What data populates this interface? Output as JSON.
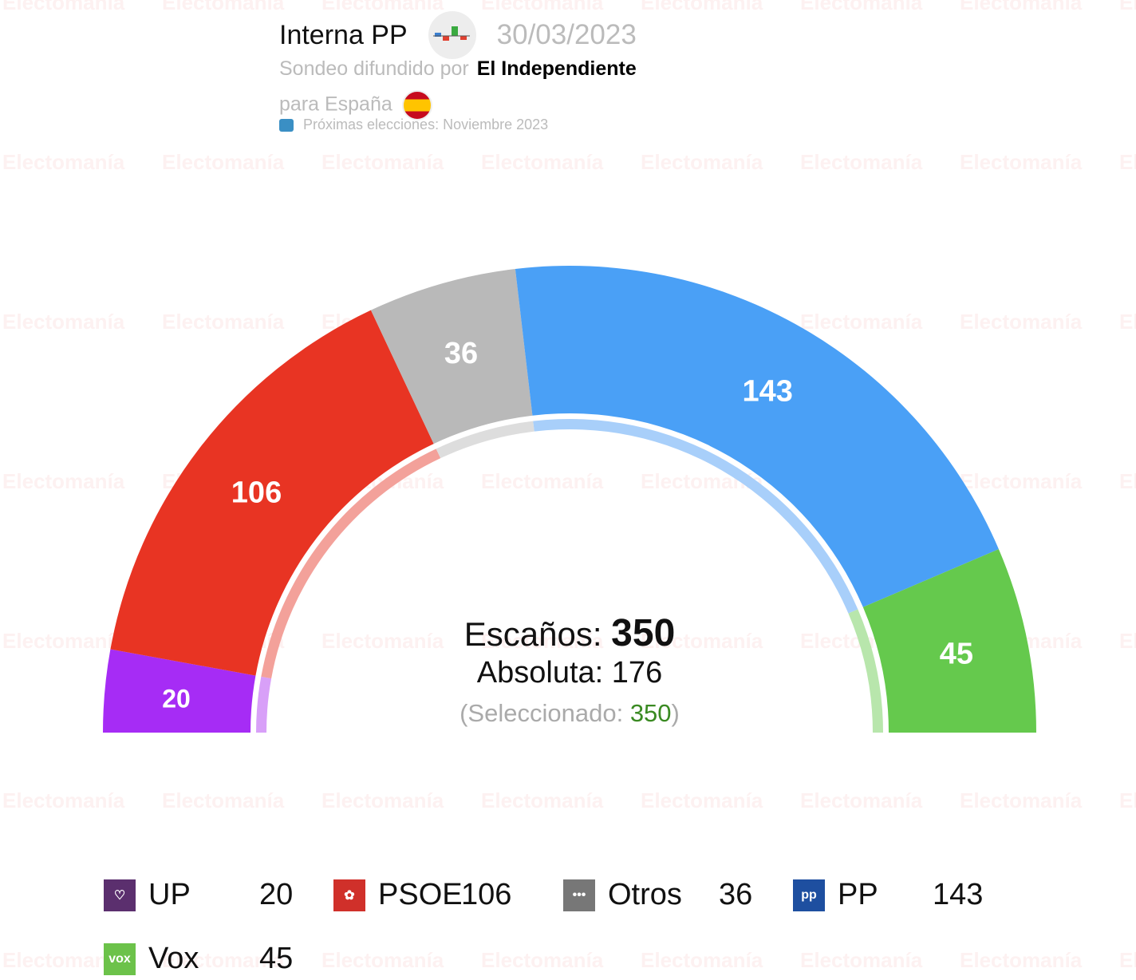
{
  "header": {
    "title": "Interna PP",
    "date": "30/03/2023",
    "source_prefix": "Sondeo difundido por",
    "source": "El Independiente",
    "scope": "para España",
    "next_elections": "Próximas elecciones: Noviembre 2023"
  },
  "watermark": "Electomanía",
  "chart_data": {
    "type": "pie",
    "subtype": "hemicycle",
    "total_seats": 350,
    "majority": 176,
    "selected": 350,
    "series": [
      {
        "name": "UP",
        "value": 20,
        "color": "#a62cf5",
        "light": "#d8a0f8"
      },
      {
        "name": "PSOE",
        "value": 106,
        "color": "#e83423",
        "light": "#f3a19a"
      },
      {
        "name": "Otros",
        "value": 36,
        "color": "#b9b9b9",
        "light": "#dddddd"
      },
      {
        "name": "PP",
        "value": 143,
        "color": "#4aa0f6",
        "light": "#a8cffa"
      },
      {
        "name": "Vox",
        "value": 45,
        "color": "#65c94d",
        "light": "#b8e6ac"
      }
    ]
  },
  "center": {
    "seats_label": "Escaños:",
    "seats": "350",
    "majority_label": "Absoluta:",
    "majority": "176",
    "selected_open": "(Seleccionado:",
    "selected": "350",
    "selected_close": ")"
  },
  "legend": [
    {
      "name": "UP",
      "value": "20",
      "color": "#5b2f6e",
      "icon": "heart-icon"
    },
    {
      "name": "PSOE",
      "value": "106",
      "color": "#d0302a",
      "icon": "rose-icon"
    },
    {
      "name": "Otros",
      "value": "36",
      "color": "#777777",
      "icon": "dots-icon"
    },
    {
      "name": "PP",
      "value": "143",
      "color": "#1e4fa0",
      "icon": "pp-logo-icon"
    },
    {
      "name": "Vox",
      "value": "45",
      "color": "#6cc24a",
      "icon": "vox-logo-icon"
    }
  ]
}
